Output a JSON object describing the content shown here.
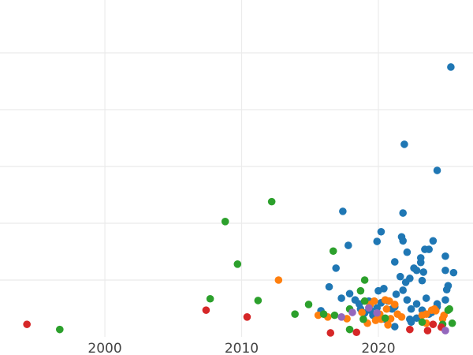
{
  "chart_data": {
    "type": "scatter",
    "title": "",
    "xlabel": "",
    "ylabel": "",
    "xlim": [
      1992.33,
      2026.92
    ],
    "ylim": [
      0,
      5.93
    ],
    "x_ticks": [
      2000,
      2010,
      2020
    ],
    "x_tick_labels": [
      "2000",
      "2010",
      "2020"
    ],
    "y_gridlines": [
      1,
      2,
      3,
      4,
      5
    ],
    "y_tick_labels_visible": false,
    "grid": true,
    "legend": "none",
    "series": [
      {
        "color": "#1f77b4",
        "points": [
          [
            2025.3,
            4.75
          ],
          [
            2021.9,
            3.39
          ],
          [
            2024.3,
            2.93
          ],
          [
            2017.4,
            2.21
          ],
          [
            2021.8,
            2.18
          ],
          [
            2020.2,
            1.85
          ],
          [
            2019.9,
            1.68
          ],
          [
            2021.7,
            1.76
          ],
          [
            2021.8,
            1.69
          ],
          [
            2024.0,
            1.69
          ],
          [
            2017.8,
            1.61
          ],
          [
            2023.4,
            1.54
          ],
          [
            2023.7,
            1.54
          ],
          [
            2022.1,
            1.49
          ],
          [
            2024.9,
            1.42
          ],
          [
            2021.2,
            1.32
          ],
          [
            2023.1,
            1.39
          ],
          [
            2023.1,
            1.31
          ],
          [
            2016.9,
            1.21
          ],
          [
            2022.6,
            1.21
          ],
          [
            2022.8,
            1.17
          ],
          [
            2023.3,
            1.14
          ],
          [
            2024.9,
            1.17
          ],
          [
            2025.5,
            1.13
          ],
          [
            2021.6,
            1.06
          ],
          [
            2022.3,
            1.03
          ],
          [
            2023.2,
            0.99
          ],
          [
            2022.0,
            0.96
          ],
          [
            2016.4,
            0.88
          ],
          [
            2020.4,
            0.85
          ],
          [
            2020.0,
            0.81
          ],
          [
            2021.3,
            0.75
          ],
          [
            2021.8,
            0.82
          ],
          [
            2025.1,
            0.9
          ],
          [
            2025.0,
            0.83
          ],
          [
            2017.3,
            0.68
          ],
          [
            2017.9,
            0.76
          ],
          [
            2018.3,
            0.65
          ],
          [
            2020.7,
            0.63
          ],
          [
            2022.1,
            0.65
          ],
          [
            2023.5,
            0.68
          ],
          [
            2024.9,
            0.65
          ],
          [
            2018.6,
            0.58
          ],
          [
            2019.3,
            0.63
          ],
          [
            2020.2,
            0.6
          ],
          [
            2021.2,
            0.53
          ],
          [
            2022.8,
            0.58
          ],
          [
            2024.3,
            0.58
          ],
          [
            2024.3,
            0.53
          ],
          [
            2015.8,
            0.46
          ],
          [
            2018.7,
            0.49
          ],
          [
            2019.9,
            0.51
          ],
          [
            2021.0,
            0.49
          ],
          [
            2022.4,
            0.49
          ],
          [
            2023.2,
            0.47
          ],
          [
            2023.9,
            0.43
          ],
          [
            2022.3,
            0.31
          ],
          [
            2022.8,
            0.33
          ],
          [
            2023.7,
            0.4
          ],
          [
            2019.6,
            0.38
          ],
          [
            2021.2,
            0.18
          ],
          [
            2022.4,
            0.26
          ],
          [
            2020.5,
            0.31
          ],
          [
            2019.0,
            0.42
          ],
          [
            2019.4,
            0.47
          ]
        ]
      },
      {
        "color": "#ff7f0e",
        "points": [
          [
            2012.7,
            1.0
          ],
          [
            2015.6,
            0.38
          ],
          [
            2016.3,
            0.35
          ],
          [
            2017.7,
            0.32
          ],
          [
            2018.8,
            0.43
          ],
          [
            2019.2,
            0.24
          ],
          [
            2019.4,
            0.57
          ],
          [
            2019.7,
            0.63
          ],
          [
            2020.1,
            0.4
          ],
          [
            2019.8,
            0.29
          ],
          [
            2020.0,
            0.35
          ],
          [
            2020.5,
            0.65
          ],
          [
            2020.6,
            0.49
          ],
          [
            2020.8,
            0.63
          ],
          [
            2020.7,
            0.21
          ],
          [
            2021.2,
            0.57
          ],
          [
            2021.4,
            0.4
          ],
          [
            2021.7,
            0.35
          ],
          [
            2023.2,
            0.38
          ],
          [
            2023.5,
            0.4
          ],
          [
            2023.9,
            0.47
          ],
          [
            2024.1,
            0.49
          ],
          [
            2024.2,
            0.46
          ],
          [
            2024.8,
            0.38
          ],
          [
            2024.7,
            0.32
          ],
          [
            2023.5,
            0.24
          ],
          [
            2020.2,
            0.31
          ],
          [
            2020.9,
            0.32
          ]
        ]
      },
      {
        "color": "#2ca02c",
        "points": [
          [
            1996.7,
            0.13
          ],
          [
            2007.7,
            0.67
          ],
          [
            2008.8,
            2.03
          ],
          [
            2009.7,
            1.28
          ],
          [
            2011.2,
            0.64
          ],
          [
            2012.2,
            2.38
          ],
          [
            2013.9,
            0.4
          ],
          [
            2014.9,
            0.57
          ],
          [
            2016.0,
            0.4
          ],
          [
            2016.7,
            1.51
          ],
          [
            2016.8,
            0.38
          ],
          [
            2017.9,
            0.49
          ],
          [
            2017.9,
            0.13
          ],
          [
            2018.7,
            0.81
          ],
          [
            2019.0,
            1.0
          ],
          [
            2018.9,
            0.31
          ],
          [
            2019.0,
            0.63
          ],
          [
            2020.5,
            0.33
          ],
          [
            2023.2,
            0.26
          ],
          [
            2024.7,
            0.22
          ],
          [
            2025.1,
            0.47
          ],
          [
            2025.4,
            0.24
          ],
          [
            2025.2,
            0.49
          ]
        ]
      },
      {
        "color": "#d62728",
        "points": [
          [
            1994.3,
            0.22
          ],
          [
            2007.4,
            0.47
          ],
          [
            2010.4,
            0.35
          ],
          [
            2016.5,
            0.07
          ],
          [
            2018.4,
            0.08
          ],
          [
            2022.3,
            0.13
          ],
          [
            2023.6,
            0.11
          ],
          [
            2024.0,
            0.22
          ],
          [
            2024.6,
            0.17
          ]
        ]
      },
      {
        "color": "#9467bd",
        "points": [
          [
            2017.3,
            0.35
          ],
          [
            2018.1,
            0.43
          ],
          [
            2019.3,
            0.51
          ],
          [
            2019.9,
            0.42
          ],
          [
            2024.9,
            0.11
          ]
        ]
      }
    ]
  }
}
